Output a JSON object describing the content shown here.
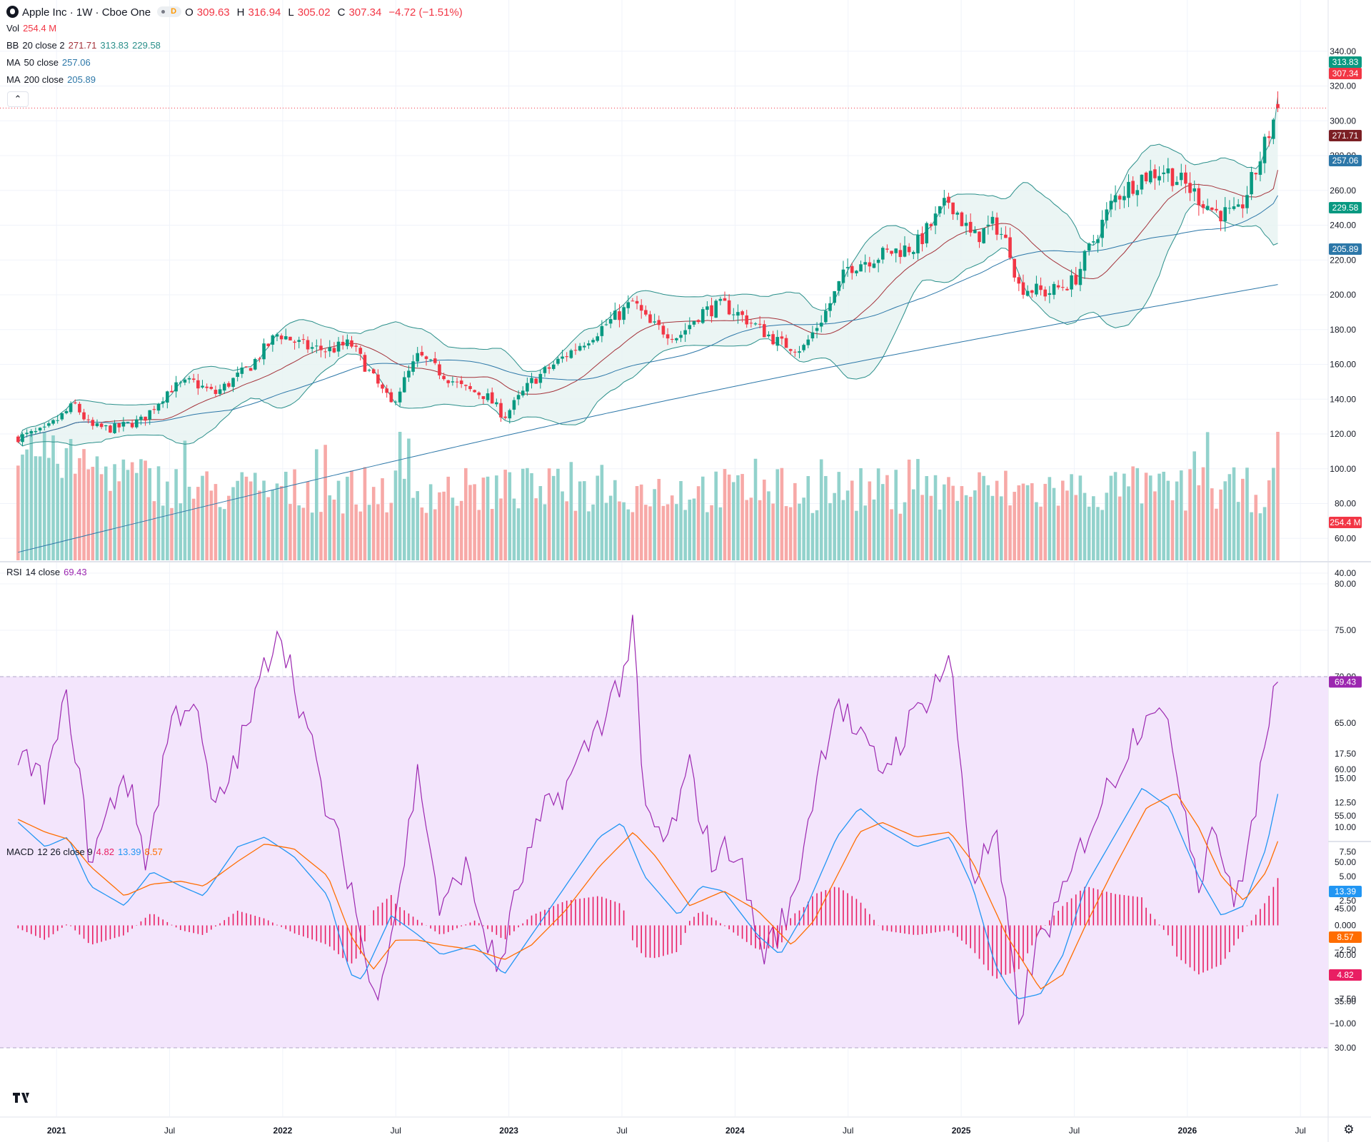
{
  "header": {
    "symbol": "Apple Inc · 1W · Cboe One",
    "badge_letter": "D",
    "ohlc": [
      {
        "label": "O",
        "value": "309.63"
      },
      {
        "label": "H",
        "value": "316.94"
      },
      {
        "label": "L",
        "value": "305.02"
      },
      {
        "label": "C",
        "value": "307.34"
      }
    ],
    "change": "−4.72 (−1.51%)"
  },
  "legends": {
    "vol": {
      "label": "Vol",
      "value": "254.4 M"
    },
    "bb": {
      "label": "BB",
      "params": "20 close 2",
      "values": [
        "271.71",
        "313.83",
        "229.58"
      ]
    },
    "ma50": {
      "label": "MA",
      "params": "50 close",
      "value": "257.06"
    },
    "ma200": {
      "label": "MA",
      "params": "200 close",
      "value": "205.89"
    },
    "rsi": {
      "label": "RSI",
      "params": "14 close",
      "value": "69.43"
    },
    "macd": {
      "label": "MACD",
      "params": "12 26 close 9",
      "values": [
        "4.82",
        "13.39",
        "8.57"
      ]
    }
  },
  "colors": {
    "up": "#089981",
    "down": "#f23645",
    "up_vol": "#92d2cc",
    "down_vol": "#f7a9a7",
    "bb_fill": "#e6f3f1",
    "bb_band": "#2a8f8a",
    "bb_basis": "#a4323a",
    "ma50": "#2c77a8",
    "ma200": "#2c77a8",
    "rsi": "#9c27b0",
    "rsi_fill": "#f3e5fc",
    "macd": "#2196f3",
    "signal": "#ff6d00",
    "hist": "#e91e63"
  },
  "x_axis": {
    "labels": [
      "2021",
      "Jul",
      "2022",
      "Jul",
      "2023",
      "Jul",
      "2024",
      "Jul",
      "2025",
      "Jul",
      "2026",
      "Jul"
    ]
  },
  "price_axis": {
    "ticks": [
      "340.00",
      "320.00",
      "300.00",
      "280.00",
      "260.00",
      "240.00",
      "220.00",
      "200.00",
      "180.00",
      "160.00",
      "140.00",
      "120.00",
      "100.00",
      "80.00",
      "60.00",
      "40.00"
    ]
  },
  "rsi_axis": {
    "ticks": [
      "80.00",
      "75.00",
      "70.00",
      "65.00",
      "60.00",
      "55.00",
      "50.00",
      "45.00",
      "40.00",
      "35.00",
      "30.00"
    ]
  },
  "macd_axis": {
    "ticks": [
      "17.50",
      "15.00",
      "12.50",
      "10.00",
      "7.50",
      "5.00",
      "2.50",
      "0.000",
      "−2.50",
      "−5.00",
      "−7.50",
      "−10.00"
    ]
  },
  "price_labels": [
    {
      "text": "313.83",
      "price": 313.83,
      "color": "#089981"
    },
    {
      "text": "307.34",
      "price": 307.34,
      "color": "#f23645"
    },
    {
      "text": "271.71",
      "price": 271.71,
      "color": "#7b1f24"
    },
    {
      "text": "257.06",
      "price": 257.06,
      "color": "#2c77a8"
    },
    {
      "text": "229.58",
      "price": 229.58,
      "color": "#089981"
    },
    {
      "text": "205.89",
      "price": 205.89,
      "color": "#2c77a8"
    }
  ],
  "vol_label": {
    "text": "254.4 M",
    "color": "#f23645"
  },
  "rsi_label": {
    "text": "69.43",
    "color": "#9c27b0"
  },
  "macd_labels": [
    {
      "text": "13.39",
      "value": 13.39,
      "color": "#2196f3"
    },
    {
      "text": "8.57",
      "value": 8.57,
      "color": "#ff6d00"
    },
    {
      "text": "4.82",
      "value": 4.82,
      "color": "#e91e63"
    }
  ],
  "chart_data": {
    "type": "candlestick",
    "title": "Apple Inc · 1W · Cboe One",
    "series": [
      {
        "name": "Price",
        "anchors": [
          [
            2020.83,
            118
          ],
          [
            2020.95,
            122
          ],
          [
            2021.08,
            137
          ],
          [
            2021.15,
            124
          ],
          [
            2021.25,
            123
          ],
          [
            2021.38,
            128
          ],
          [
            2021.5,
            146
          ],
          [
            2021.6,
            150
          ],
          [
            2021.7,
            143
          ],
          [
            2021.85,
            158
          ],
          [
            2021.98,
            178
          ],
          [
            2022.1,
            170
          ],
          [
            2022.2,
            168
          ],
          [
            2022.3,
            172
          ],
          [
            2022.38,
            156
          ],
          [
            2022.48,
            137
          ],
          [
            2022.6,
            165
          ],
          [
            2022.68,
            157
          ],
          [
            2022.8,
            146
          ],
          [
            2022.9,
            142
          ],
          [
            2022.98,
            130
          ],
          [
            2023.1,
            150
          ],
          [
            2023.25,
            165
          ],
          [
            2023.35,
            175
          ],
          [
            2023.5,
            190
          ],
          [
            2023.55,
            196
          ],
          [
            2023.62,
            183
          ],
          [
            2023.75,
            176
          ],
          [
            2023.85,
            190
          ],
          [
            2023.95,
            194
          ],
          [
            2024.05,
            186
          ],
          [
            2024.2,
            172
          ],
          [
            2024.3,
            169
          ],
          [
            2024.4,
            190
          ],
          [
            2024.5,
            216
          ],
          [
            2024.6,
            221
          ],
          [
            2024.7,
            225
          ],
          [
            2024.8,
            228
          ],
          [
            2024.95,
            255
          ],
          [
            2025.05,
            232
          ],
          [
            2025.15,
            241
          ],
          [
            2025.22,
            225
          ],
          [
            2025.25,
            205
          ],
          [
            2025.38,
            201
          ],
          [
            2025.5,
            208
          ],
          [
            2025.58,
            230
          ],
          [
            2025.68,
            256
          ],
          [
            2025.8,
            268
          ],
          [
            2025.9,
            272
          ],
          [
            2026.0,
            262
          ],
          [
            2026.12,
            248
          ],
          [
            2026.22,
            245
          ],
          [
            2026.3,
            270
          ],
          [
            2026.4,
            308
          ]
        ]
      },
      {
        "name": "RSI",
        "anchors": [
          [
            2020.83,
            62
          ],
          [
            2020.95,
            58
          ],
          [
            2021.05,
            68
          ],
          [
            2021.15,
            50
          ],
          [
            2021.3,
            60
          ],
          [
            2021.4,
            50
          ],
          [
            2021.5,
            65
          ],
          [
            2021.6,
            68
          ],
          [
            2021.7,
            55
          ],
          [
            2021.85,
            65
          ],
          [
            2021.98,
            76
          ],
          [
            2022.1,
            65
          ],
          [
            2022.2,
            55
          ],
          [
            2022.3,
            48
          ],
          [
            2022.4,
            35
          ],
          [
            2022.5,
            45
          ],
          [
            2022.6,
            60
          ],
          [
            2022.7,
            44
          ],
          [
            2022.8,
            50
          ],
          [
            2022.95,
            38
          ],
          [
            2023.05,
            48
          ],
          [
            2023.15,
            55
          ],
          [
            2023.25,
            58
          ],
          [
            2023.4,
            65
          ],
          [
            2023.5,
            70
          ],
          [
            2023.55,
            75
          ],
          [
            2023.6,
            55
          ],
          [
            2023.7,
            52
          ],
          [
            2023.8,
            60
          ],
          [
            2023.9,
            50
          ],
          [
            2024.0,
            52
          ],
          [
            2024.12,
            40
          ],
          [
            2024.25,
            45
          ],
          [
            2024.35,
            58
          ],
          [
            2024.45,
            68
          ],
          [
            2024.55,
            63
          ],
          [
            2024.65,
            60
          ],
          [
            2024.8,
            66
          ],
          [
            2024.95,
            72
          ],
          [
            2025.05,
            48
          ],
          [
            2025.15,
            53
          ],
          [
            2025.22,
            40
          ],
          [
            2025.25,
            33
          ],
          [
            2025.35,
            42
          ],
          [
            2025.45,
            46
          ],
          [
            2025.55,
            53
          ],
          [
            2025.65,
            58
          ],
          [
            2025.75,
            63
          ],
          [
            2025.85,
            68
          ],
          [
            2025.95,
            61
          ],
          [
            2026.05,
            48
          ],
          [
            2026.12,
            55
          ],
          [
            2026.2,
            45
          ],
          [
            2026.3,
            55
          ],
          [
            2026.37,
            68
          ],
          [
            2026.4,
            69.43
          ]
        ]
      },
      {
        "name": "MACD",
        "anchors": [
          [
            2020.83,
            10.5
          ],
          [
            2020.95,
            8
          ],
          [
            2021.05,
            9
          ],
          [
            2021.15,
            4
          ],
          [
            2021.3,
            2
          ],
          [
            2021.42,
            5.5
          ],
          [
            2021.55,
            4
          ],
          [
            2021.65,
            3
          ],
          [
            2021.8,
            8
          ],
          [
            2021.92,
            9
          ],
          [
            2022.05,
            7
          ],
          [
            2022.2,
            3
          ],
          [
            2022.3,
            -5
          ],
          [
            2022.35,
            -5.5
          ],
          [
            2022.48,
            1
          ],
          [
            2022.6,
            -1
          ],
          [
            2022.7,
            -3
          ],
          [
            2022.85,
            -2
          ],
          [
            2022.98,
            -5
          ],
          [
            2023.1,
            -1
          ],
          [
            2023.25,
            4
          ],
          [
            2023.4,
            9
          ],
          [
            2023.5,
            10.5
          ],
          [
            2023.6,
            5
          ],
          [
            2023.75,
            1
          ],
          [
            2023.85,
            4
          ],
          [
            2023.95,
            3.5
          ],
          [
            2024.1,
            -1
          ],
          [
            2024.2,
            -3
          ],
          [
            2024.3,
            1
          ],
          [
            2024.45,
            9
          ],
          [
            2024.55,
            12
          ],
          [
            2024.65,
            10
          ],
          [
            2024.8,
            8
          ],
          [
            2024.95,
            9
          ],
          [
            2025.05,
            4
          ],
          [
            2025.15,
            -4
          ],
          [
            2025.2,
            -6
          ],
          [
            2025.25,
            -7.5
          ],
          [
            2025.35,
            -7
          ],
          [
            2025.45,
            -3
          ],
          [
            2025.55,
            4
          ],
          [
            2025.7,
            10
          ],
          [
            2025.8,
            14
          ],
          [
            2025.92,
            12
          ],
          [
            2026.05,
            5
          ],
          [
            2026.15,
            1
          ],
          [
            2026.25,
            2
          ],
          [
            2026.35,
            8
          ],
          [
            2026.4,
            13.39
          ]
        ]
      },
      {
        "name": "Signal",
        "anchors": [
          [
            2020.83,
            10.8
          ],
          [
            2020.95,
            9.5
          ],
          [
            2021.05,
            8.8
          ],
          [
            2021.15,
            6
          ],
          [
            2021.3,
            3
          ],
          [
            2021.42,
            4.2
          ],
          [
            2021.55,
            4.5
          ],
          [
            2021.65,
            4
          ],
          [
            2021.8,
            6.5
          ],
          [
            2021.92,
            8.3
          ],
          [
            2022.05,
            7.8
          ],
          [
            2022.2,
            5
          ],
          [
            2022.3,
            -1
          ],
          [
            2022.4,
            -4.5
          ],
          [
            2022.5,
            -1.5
          ],
          [
            2022.6,
            -1.5
          ],
          [
            2022.7,
            -2
          ],
          [
            2022.85,
            -2.5
          ],
          [
            2022.98,
            -3.5
          ],
          [
            2023.1,
            -2
          ],
          [
            2023.25,
            1.5
          ],
          [
            2023.4,
            6
          ],
          [
            2023.55,
            9.5
          ],
          [
            2023.65,
            7
          ],
          [
            2023.8,
            2
          ],
          [
            2023.95,
            3.5
          ],
          [
            2024.1,
            1.5
          ],
          [
            2024.25,
            -2
          ],
          [
            2024.35,
            0.5
          ],
          [
            2024.45,
            5
          ],
          [
            2024.55,
            9.5
          ],
          [
            2024.65,
            10.5
          ],
          [
            2024.8,
            9
          ],
          [
            2024.95,
            9.5
          ],
          [
            2025.05,
            6.5
          ],
          [
            2025.2,
            -1
          ],
          [
            2025.35,
            -6.5
          ],
          [
            2025.45,
            -5
          ],
          [
            2025.55,
            0
          ],
          [
            2025.68,
            6
          ],
          [
            2025.82,
            12
          ],
          [
            2025.95,
            13.5
          ],
          [
            2026.05,
            10
          ],
          [
            2026.15,
            5
          ],
          [
            2026.25,
            2.5
          ],
          [
            2026.35,
            5.5
          ],
          [
            2026.4,
            8.57
          ]
        ]
      }
    ],
    "last": {
      "open": 309.63,
      "high": 316.94,
      "low": 305.02,
      "close": 307.34,
      "volume_m": 254.4,
      "bb_basis": 271.71,
      "bb_upper": 313.83,
      "bb_lower": 229.58,
      "ma50": 257.06,
      "ma200": 205.89,
      "rsi": 69.43,
      "macd_hist": 4.82,
      "macd": 13.39,
      "signal": 8.57
    },
    "price_range": [
      40,
      340
    ],
    "rsi_range": [
      30,
      80
    ],
    "rsi_bands": [
      30,
      70
    ],
    "macd_range": [
      -10,
      17.5
    ],
    "x_range": [
      "2020-10",
      "2026-07"
    ]
  }
}
